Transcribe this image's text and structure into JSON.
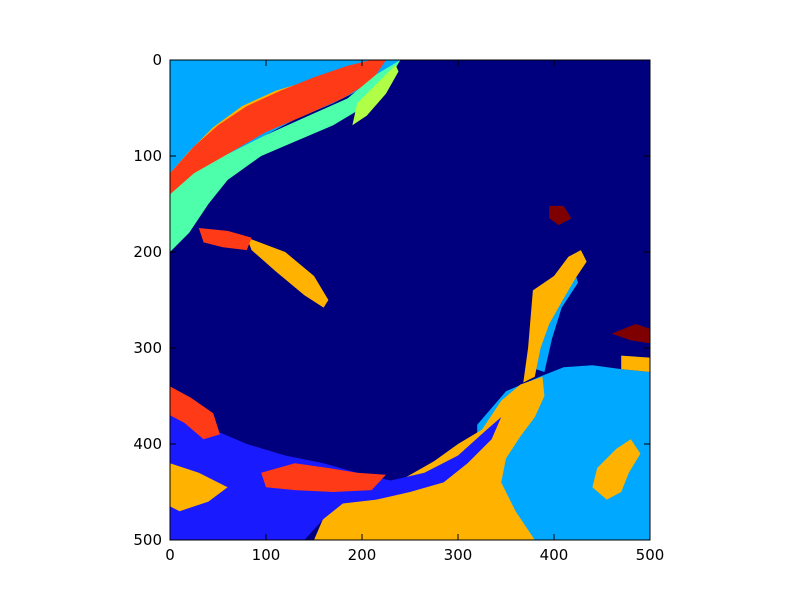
{
  "chart_data": {
    "type": "heatmap",
    "title": "",
    "xlabel": "",
    "ylabel": "",
    "xlim": [
      0,
      500
    ],
    "ylim": [
      500,
      0
    ],
    "xticks": [
      "0",
      "100",
      "200",
      "300",
      "400",
      "500"
    ],
    "yticks": [
      "0",
      "100",
      "200",
      "300",
      "400",
      "500"
    ],
    "colormap": "jet",
    "legend": "none",
    "grid": false,
    "palette": {
      "background_navy": "#00007f",
      "blue": "#1a1aff",
      "sky_blue": "#00a8ff",
      "orange": "#ffb300",
      "red": "#ff3a16",
      "aquamarine": "#4dffaa",
      "lime": "#b0ff46",
      "dark_red": "#7f0000"
    },
    "regions": [
      {
        "name": "sky-blue-upper-left",
        "color": "sky_blue",
        "points": [
          [
            0,
            0
          ],
          [
            240,
            0
          ],
          [
            230,
            10
          ],
          [
            200,
            30
          ],
          [
            170,
            45
          ],
          [
            130,
            62
          ],
          [
            100,
            78
          ],
          [
            70,
            95
          ],
          [
            45,
            115
          ],
          [
            20,
            135
          ],
          [
            0,
            150
          ]
        ]
      },
      {
        "name": "orange-upper-band",
        "color": "orange",
        "points": [
          [
            0,
            118
          ],
          [
            20,
            95
          ],
          [
            45,
            70
          ],
          [
            75,
            48
          ],
          [
            110,
            32
          ],
          [
            150,
            20
          ],
          [
            190,
            8
          ],
          [
            222,
            0
          ],
          [
            200,
            18
          ],
          [
            160,
            35
          ],
          [
            120,
            50
          ],
          [
            90,
            65
          ],
          [
            60,
            85
          ],
          [
            30,
            108
          ],
          [
            0,
            140
          ]
        ]
      },
      {
        "name": "red-upper-band",
        "color": "red",
        "points": [
          [
            0,
            118
          ],
          [
            25,
            90
          ],
          [
            50,
            68
          ],
          [
            80,
            48
          ],
          [
            115,
            32
          ],
          [
            150,
            18
          ],
          [
            185,
            6
          ],
          [
            210,
            0
          ],
          [
            225,
            0
          ],
          [
            210,
            22
          ],
          [
            180,
            40
          ],
          [
            140,
            58
          ],
          [
            100,
            75
          ],
          [
            60,
            98
          ],
          [
            25,
            125
          ],
          [
            0,
            145
          ]
        ]
      },
      {
        "name": "aquamarine-band",
        "color": "aquamarine",
        "points": [
          [
            0,
            140
          ],
          [
            25,
            118
          ],
          [
            60,
            98
          ],
          [
            100,
            78
          ],
          [
            140,
            60
          ],
          [
            185,
            40
          ],
          [
            215,
            15
          ],
          [
            240,
            0
          ],
          [
            225,
            25
          ],
          [
            200,
            50
          ],
          [
            170,
            68
          ],
          [
            130,
            85
          ],
          [
            95,
            100
          ],
          [
            60,
            125
          ],
          [
            40,
            150
          ],
          [
            20,
            180
          ],
          [
            0,
            200
          ]
        ]
      },
      {
        "name": "lime-streak",
        "color": "lime",
        "points": [
          [
            195,
            45
          ],
          [
            215,
            25
          ],
          [
            235,
            5
          ],
          [
            238,
            12
          ],
          [
            225,
            35
          ],
          [
            205,
            58
          ],
          [
            190,
            68
          ]
        ]
      },
      {
        "name": "sky-blue-lower-right",
        "color": "sky_blue",
        "points": [
          [
            320,
            380
          ],
          [
            350,
            345
          ],
          [
            385,
            330
          ],
          [
            410,
            320
          ],
          [
            440,
            318
          ],
          [
            470,
            322
          ],
          [
            500,
            325
          ],
          [
            500,
            500
          ],
          [
            320,
            500
          ]
        ]
      },
      {
        "name": "sky-blue-inlet",
        "color": "sky_blue",
        "points": [
          [
            375,
            320
          ],
          [
            385,
            275
          ],
          [
            395,
            245
          ],
          [
            410,
            225
          ],
          [
            420,
            215
          ],
          [
            425,
            232
          ],
          [
            408,
            258
          ],
          [
            398,
            290
          ],
          [
            390,
            325
          ]
        ]
      },
      {
        "name": "orange-lower-main",
        "color": "orange",
        "points": [
          [
            150,
            500
          ],
          [
            165,
            465
          ],
          [
            200,
            448
          ],
          [
            245,
            435
          ],
          [
            275,
            418
          ],
          [
            300,
            400
          ],
          [
            325,
            385
          ],
          [
            345,
            355
          ],
          [
            365,
            338
          ],
          [
            388,
            330
          ],
          [
            390,
            350
          ],
          [
            380,
            372
          ],
          [
            365,
            392
          ],
          [
            350,
            415
          ],
          [
            345,
            440
          ],
          [
            360,
            470
          ],
          [
            380,
            500
          ]
        ]
      },
      {
        "name": "orange-inlet",
        "color": "orange",
        "points": [
          [
            378,
            240
          ],
          [
            400,
            225
          ],
          [
            415,
            205
          ],
          [
            428,
            198
          ],
          [
            434,
            210
          ],
          [
            422,
            228
          ],
          [
            408,
            252
          ],
          [
            395,
            275
          ],
          [
            386,
            300
          ],
          [
            380,
            330
          ],
          [
            368,
            336
          ],
          [
            373,
            300
          ]
        ]
      },
      {
        "name": "orange-right-lobe",
        "color": "orange",
        "points": [
          [
            445,
            425
          ],
          [
            465,
            405
          ],
          [
            480,
            395
          ],
          [
            490,
            410
          ],
          [
            478,
            430
          ],
          [
            470,
            450
          ],
          [
            455,
            458
          ],
          [
            440,
            445
          ]
        ]
      },
      {
        "name": "orange-right-edge",
        "color": "orange",
        "points": [
          [
            470,
            308
          ],
          [
            500,
            310
          ],
          [
            500,
            325
          ],
          [
            470,
            322
          ]
        ]
      },
      {
        "name": "orange-left-arm",
        "color": "orange",
        "points": [
          [
            80,
            185
          ],
          [
            120,
            200
          ],
          [
            150,
            225
          ],
          [
            165,
            250
          ],
          [
            160,
            258
          ],
          [
            140,
            245
          ],
          [
            110,
            220
          ],
          [
            85,
            198
          ]
        ]
      },
      {
        "name": "blue-lower-left",
        "color": "blue",
        "points": [
          [
            0,
            350
          ],
          [
            20,
            365
          ],
          [
            45,
            385
          ],
          [
            80,
            400
          ],
          [
            120,
            412
          ],
          [
            160,
            420
          ],
          [
            195,
            430
          ],
          [
            230,
            438
          ],
          [
            265,
            430
          ],
          [
            300,
            412
          ],
          [
            330,
            385
          ],
          [
            345,
            372
          ],
          [
            335,
            395
          ],
          [
            310,
            420
          ],
          [
            285,
            440
          ],
          [
            250,
            450
          ],
          [
            215,
            458
          ],
          [
            180,
            462
          ],
          [
            160,
            478
          ],
          [
            140,
            500
          ],
          [
            0,
            500
          ]
        ]
      },
      {
        "name": "red-lower-left",
        "color": "red",
        "points": [
          [
            0,
            340
          ],
          [
            22,
            352
          ],
          [
            45,
            368
          ],
          [
            52,
            390
          ],
          [
            35,
            395
          ],
          [
            15,
            378
          ],
          [
            0,
            370
          ]
        ]
      },
      {
        "name": "red-lower-streak",
        "color": "red",
        "points": [
          [
            95,
            430
          ],
          [
            130,
            420
          ],
          [
            165,
            425
          ],
          [
            195,
            430
          ],
          [
            225,
            432
          ],
          [
            210,
            448
          ],
          [
            170,
            450
          ],
          [
            130,
            448
          ],
          [
            100,
            445
          ]
        ]
      },
      {
        "name": "red-mid-left",
        "color": "red",
        "points": [
          [
            30,
            175
          ],
          [
            60,
            178
          ],
          [
            85,
            185
          ],
          [
            80,
            198
          ],
          [
            55,
            195
          ],
          [
            35,
            190
          ]
        ]
      },
      {
        "name": "orange-bottom-left-fringe",
        "color": "orange",
        "points": [
          [
            0,
            420
          ],
          [
            30,
            430
          ],
          [
            60,
            445
          ],
          [
            40,
            460
          ],
          [
            10,
            470
          ],
          [
            0,
            465
          ]
        ]
      },
      {
        "name": "dark-red-patch",
        "color": "dark_red",
        "points": [
          [
            395,
            152
          ],
          [
            410,
            152
          ],
          [
            418,
            165
          ],
          [
            405,
            172
          ],
          [
            395,
            165
          ]
        ]
      },
      {
        "name": "dark-red-right-edge",
        "color": "dark_red",
        "points": [
          [
            460,
            285
          ],
          [
            485,
            275
          ],
          [
            500,
            280
          ],
          [
            500,
            295
          ],
          [
            480,
            292
          ]
        ]
      }
    ]
  }
}
